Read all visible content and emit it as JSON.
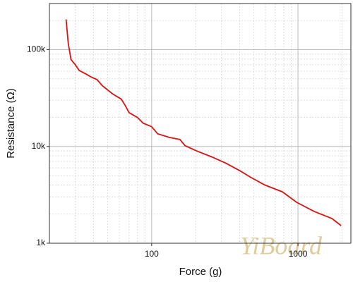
{
  "chart_data": {
    "type": "line",
    "x_label": "Force (g)",
    "y_label": "Resistance (Ω)",
    "x": [
      26,
      26.9,
      28.1,
      30,
      32,
      35.6,
      38.8,
      42.4,
      45.9,
      54,
      62,
      66,
      70,
      80,
      87.5,
      100,
      110,
      132,
      156,
      169,
      206,
      258,
      322,
      402,
      475,
      593,
      783,
      978,
      1290,
      1710,
      1970
    ],
    "values": [
      206000,
      116000,
      79000,
      70000,
      61000,
      56000,
      52000,
      49000,
      42500,
      35000,
      30800,
      26500,
      22400,
      19900,
      17400,
      16000,
      13500,
      12400,
      11800,
      10200,
      8900,
      7800,
      6700,
      5600,
      4800,
      4000,
      3400,
      2650,
      2130,
      1800,
      1520
    ],
    "color": "#e01010",
    "x_log": true,
    "y_log": true,
    "xlim": [
      20,
      2300
    ],
    "ylim": [
      1000,
      300000
    ],
    "xticks": [
      100,
      1000
    ],
    "yticks": [
      {
        "value": 1000,
        "label": "1k"
      },
      {
        "value": 10000,
        "label": "10k"
      },
      {
        "value": 100000,
        "label": "100k"
      }
    ],
    "grid": true,
    "watermark": "YiBoard"
  }
}
